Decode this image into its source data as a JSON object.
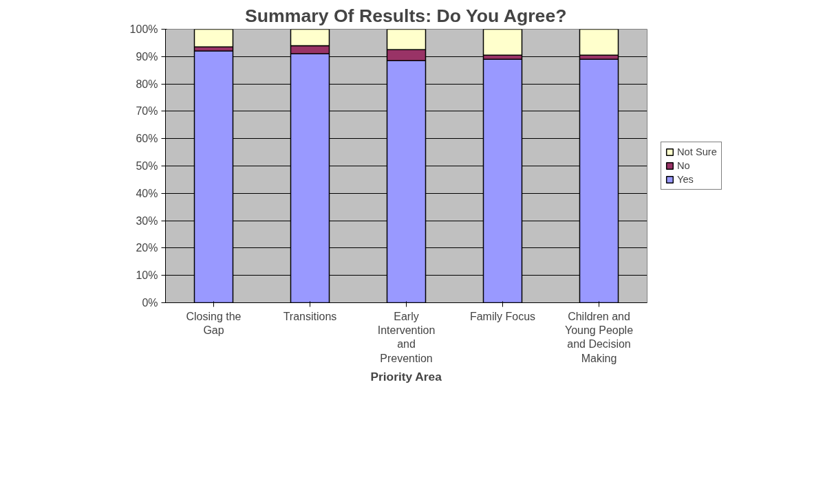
{
  "chart_data": {
    "type": "bar",
    "title": "Summary Of Results: Do You Agree?",
    "xlabel": "Priority Area",
    "stacked": true,
    "categories": [
      "Closing the Gap",
      "Transitions",
      "Early Intervention and Prevention",
      "Family Focus",
      "Children and Young People and Decision Making"
    ],
    "series": [
      {
        "name": "Yes",
        "color": "#9999ff",
        "values": [
          92,
          91,
          88.5,
          89,
          89
        ]
      },
      {
        "name": "No",
        "color": "#993366",
        "values": [
          1.5,
          3,
          4,
          1.5,
          1.5
        ]
      },
      {
        "name": "Not Sure",
        "color": "#ffffcc",
        "values": [
          6.5,
          6,
          7.5,
          9.5,
          9.5
        ]
      }
    ],
    "ylim": [
      0,
      100
    ],
    "yticks": [
      {
        "value": 0,
        "label": "0%"
      },
      {
        "value": 10,
        "label": "10%"
      },
      {
        "value": 20,
        "label": "20%"
      },
      {
        "value": 30,
        "label": "30%"
      },
      {
        "value": 40,
        "label": "40%"
      },
      {
        "value": 50,
        "label": "50%"
      },
      {
        "value": 60,
        "label": "60%"
      },
      {
        "value": 70,
        "label": "70%"
      },
      {
        "value": 80,
        "label": "80%"
      },
      {
        "value": 90,
        "label": "90%"
      },
      {
        "value": 100,
        "label": "100%"
      }
    ],
    "grid": "y",
    "legend": "right"
  }
}
